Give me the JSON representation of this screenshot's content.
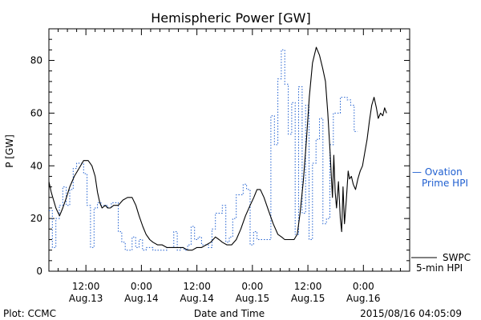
{
  "chart_data": {
    "type": "line",
    "title": "Hemispheric Power [GW]",
    "xlabel": "Date and Time",
    "ylabel": "P [GW]",
    "ylim": [
      0,
      92
    ],
    "xlim_hours": [
      0,
      78
    ],
    "y_ticks": [
      0,
      20,
      40,
      60,
      80
    ],
    "x_ticks": [
      {
        "h": 8,
        "time": "12:00",
        "date": "Aug.13"
      },
      {
        "h": 20,
        "time": "0:00",
        "date": "Aug.14"
      },
      {
        "h": 32,
        "time": "12:00",
        "date": "Aug.14"
      },
      {
        "h": 44,
        "time": "0:00",
        "date": "Aug.15"
      },
      {
        "h": 56,
        "time": "12:00",
        "date": "Aug.15"
      },
      {
        "h": 68,
        "time": "0:00",
        "date": "Aug.16"
      }
    ],
    "x_minor_step_hours": 2,
    "grid": false,
    "series": [
      {
        "name": "SWPC 5-min HPI",
        "color": "#000000",
        "style": "solid",
        "points": [
          [
            0.0,
            34
          ],
          [
            0.5,
            30
          ],
          [
            1.0,
            27
          ],
          [
            1.5,
            24
          ],
          [
            2.3,
            21
          ],
          [
            3.0,
            24
          ],
          [
            3.8,
            28
          ],
          [
            4.5,
            32
          ],
          [
            5.5,
            36
          ],
          [
            6.5,
            39
          ],
          [
            7.5,
            42
          ],
          [
            8.5,
            42
          ],
          [
            9.3,
            40
          ],
          [
            10.0,
            36
          ],
          [
            10.5,
            30
          ],
          [
            11.0,
            26
          ],
          [
            11.5,
            24
          ],
          [
            12.2,
            25
          ],
          [
            12.7,
            24
          ],
          [
            13.3,
            24
          ],
          [
            14.0,
            25
          ],
          [
            15.0,
            25
          ],
          [
            16.0,
            27
          ],
          [
            17.0,
            28
          ],
          [
            18.0,
            28
          ],
          [
            18.8,
            25
          ],
          [
            19.5,
            21
          ],
          [
            20.3,
            17
          ],
          [
            21.0,
            14
          ],
          [
            21.8,
            12
          ],
          [
            22.5,
            11
          ],
          [
            23.5,
            10
          ],
          [
            24.5,
            10
          ],
          [
            25.5,
            9
          ],
          [
            27,
            9
          ],
          [
            28,
            9
          ],
          [
            29,
            9
          ],
          [
            30,
            8
          ],
          [
            31,
            8
          ],
          [
            32,
            9
          ],
          [
            33,
            9
          ],
          [
            34,
            10
          ],
          [
            35,
            11
          ],
          [
            36,
            13
          ],
          [
            36.8,
            12
          ],
          [
            37.5,
            11
          ],
          [
            38.5,
            10
          ],
          [
            39.5,
            10
          ],
          [
            40.5,
            12
          ],
          [
            41.5,
            16
          ],
          [
            42.5,
            21
          ],
          [
            43.5,
            25
          ],
          [
            44.3,
            28
          ],
          [
            45.0,
            31
          ],
          [
            45.7,
            31
          ],
          [
            46.5,
            28
          ],
          [
            47.5,
            23
          ],
          [
            48.5,
            18
          ],
          [
            49.5,
            14
          ],
          [
            50.3,
            13
          ],
          [
            51,
            12
          ],
          [
            52,
            12
          ],
          [
            53,
            12
          ],
          [
            53.7,
            14
          ],
          [
            54.3,
            22
          ],
          [
            55.0,
            34
          ],
          [
            55.7,
            50
          ],
          [
            56.3,
            66
          ],
          [
            57.0,
            79
          ],
          [
            57.8,
            85
          ],
          [
            58.5,
            82
          ],
          [
            59.2,
            77
          ],
          [
            59.8,
            72
          ],
          [
            60.3,
            60
          ],
          [
            60.8,
            45
          ],
          [
            61.1,
            35
          ],
          [
            61.3,
            28
          ],
          [
            61.6,
            44
          ],
          [
            61.9,
            30
          ],
          [
            62.2,
            24
          ],
          [
            62.6,
            34
          ],
          [
            63.0,
            20
          ],
          [
            63.3,
            15
          ],
          [
            63.6,
            32
          ],
          [
            63.9,
            18
          ],
          [
            64.3,
            27
          ],
          [
            64.7,
            38
          ],
          [
            65.0,
            35
          ],
          [
            65.4,
            36
          ],
          [
            65.8,
            33
          ],
          [
            66.3,
            31
          ],
          [
            66.8,
            35
          ],
          [
            67.3,
            38
          ],
          [
            67.8,
            40
          ],
          [
            68.3,
            45
          ],
          [
            68.8,
            50
          ],
          [
            69.3,
            57
          ],
          [
            69.8,
            63
          ],
          [
            70.3,
            66
          ],
          [
            70.8,
            62
          ],
          [
            71.2,
            58
          ],
          [
            71.7,
            60
          ],
          [
            72.2,
            59
          ],
          [
            72.6,
            62
          ],
          [
            73.0,
            60
          ]
        ]
      },
      {
        "name": "Ovation Prime HPI",
        "color": "#1f5fd0",
        "style": "dashed-step",
        "bin_hours": 0.75,
        "steps": [
          23,
          9,
          20,
          25,
          32,
          25,
          31,
          39,
          41,
          41,
          37,
          25,
          9,
          24,
          26,
          25,
          25,
          24,
          26,
          26,
          15,
          11,
          8,
          8,
          13,
          9,
          12,
          8,
          9,
          9,
          8,
          8,
          8,
          8,
          9,
          9,
          15,
          8,
          9,
          8,
          10,
          17,
          12,
          13,
          10,
          10,
          9,
          16,
          22,
          22,
          25,
          11,
          13,
          20,
          29,
          29,
          33,
          31,
          10,
          15,
          12,
          12,
          12,
          12,
          59,
          48,
          73,
          84,
          71,
          52,
          64,
          14,
          70,
          22,
          63,
          12,
          41,
          50,
          58,
          18,
          20,
          48,
          60,
          60,
          66,
          66,
          65,
          63,
          53
        ]
      }
    ],
    "legend": {
      "placement": "right",
      "entries": [
        {
          "line1": "— Ovation",
          "line2": "Prime HPI",
          "color": "#1f5fd0"
        },
        {
          "line1": "SWPC",
          "line2": "5-min HPI",
          "color": "#000000"
        }
      ]
    },
    "footer": {
      "left": "Plot: CCMC",
      "center": "Date and Time",
      "right": "2015/08/16 04:05:09"
    }
  }
}
